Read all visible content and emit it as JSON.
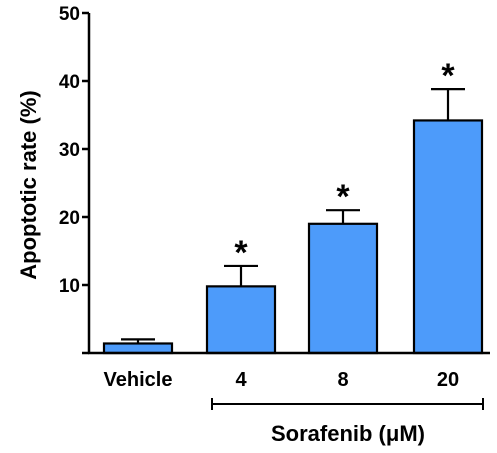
{
  "chart_data": {
    "type": "bar",
    "title": "",
    "ylabel": "Apoptotic rate (%)",
    "xlabel": "",
    "ylim": [
      0,
      50
    ],
    "yticks": [
      0,
      10,
      20,
      30,
      40,
      50
    ],
    "ytick_labels": [
      "",
      "10",
      "20",
      "30",
      "40",
      "50"
    ],
    "categories": [
      "Vehicle",
      "4",
      "8",
      "20"
    ],
    "values": [
      1.4,
      9.8,
      19.0,
      34.2
    ],
    "errors": [
      0.6,
      3.0,
      2.0,
      4.6
    ],
    "significance": [
      "",
      "*",
      "*",
      "*"
    ],
    "group_label": "Sorafenib (μM)",
    "group_span": [
      "4",
      "20"
    ],
    "bar_color": "#4d9bfa",
    "edge_color": "#000000",
    "grid": false,
    "legend": "none"
  }
}
